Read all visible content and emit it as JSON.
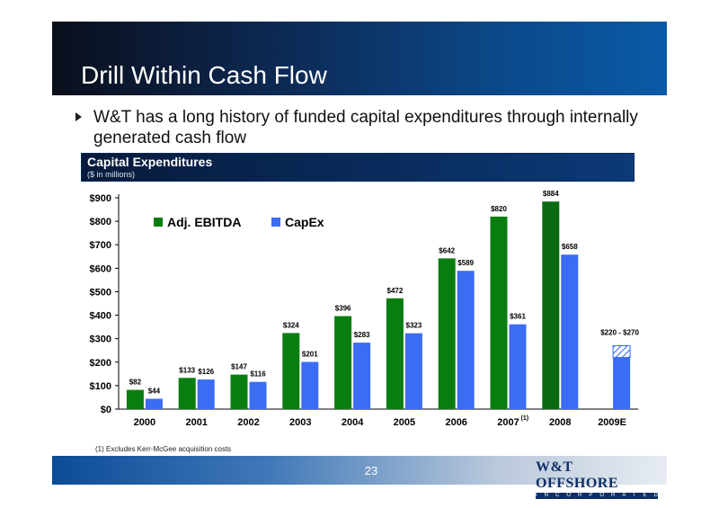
{
  "slide": {
    "title": "Drill Within Cash Flow",
    "bullet": "W&T has a long history of funded capital expenditures through internally generated cash flow",
    "section_title": "Capital Expenditures",
    "section_subtitle": "($ in millions)",
    "footnote": "(1) Excludes Kerr-McGee acquisition costs",
    "page_number": "23",
    "logo_text": "W&T OFFSHORE",
    "logo_sub": "INCORPORATED"
  },
  "colors": {
    "ebitda": "#0a7d10",
    "capex": "#3a6cf4",
    "ebitda_2008": "#0a6a12"
  },
  "chart_data": {
    "type": "bar",
    "categories": [
      "2000",
      "2001",
      "2002",
      "2003",
      "2004",
      "2005",
      "2006",
      "2007",
      "2008",
      "2009E"
    ],
    "category_superscript": {
      "2007": "(1)"
    },
    "series": [
      {
        "name": "Adj. EBITDA",
        "values": [
          82,
          133,
          147,
          324,
          396,
          472,
          642,
          820,
          884,
          null
        ],
        "labels": [
          "$82",
          "$133",
          "$147",
          "$324",
          "$396",
          "$472",
          "$642",
          "$820",
          "$884",
          ""
        ]
      },
      {
        "name": "CapEx",
        "values": [
          44,
          126,
          116,
          201,
          283,
          323,
          589,
          361,
          658,
          null
        ],
        "labels": [
          "$44",
          "$126",
          "$116",
          "$201",
          "$283",
          "$323",
          "$589",
          "$361",
          "$658",
          ""
        ]
      }
    ],
    "capex_range_2009E": {
      "low": 220,
      "high": 270,
      "label": "$220 - $270"
    },
    "ylim": [
      0,
      900
    ],
    "yticks": [
      0,
      100,
      200,
      300,
      400,
      500,
      600,
      700,
      800,
      900
    ],
    "ytick_labels": [
      "$0",
      "$100",
      "$200",
      "$300",
      "$400",
      "$500",
      "$600",
      "$700",
      "$800",
      "$900"
    ],
    "legend_position": "top-left",
    "grid": false
  }
}
